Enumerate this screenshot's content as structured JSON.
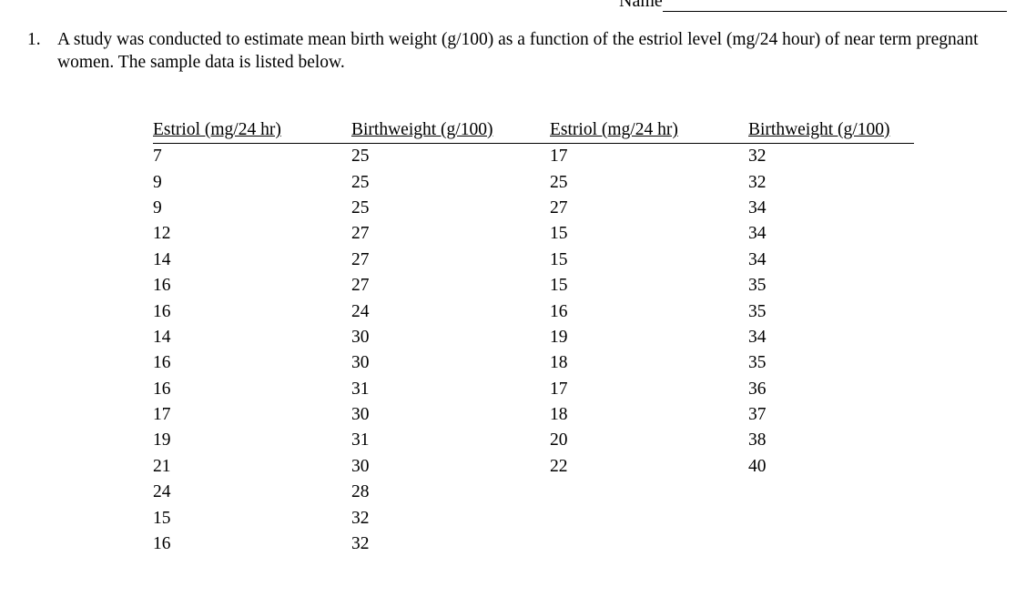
{
  "header": {
    "name_label": "Name"
  },
  "question": {
    "number": "1.",
    "text": "A study was conducted to estimate mean birth weight (g/100) as a function of the estriol level (mg/24 hour) of near term pregnant women. The sample data is listed below."
  },
  "table": {
    "headers": [
      "Estriol (mg/24 hr)",
      "Birthweight (g/100)",
      "Estriol (mg/24 hr)",
      "Birthweight (g/100)"
    ],
    "rows": [
      [
        "7",
        "25",
        "17",
        "32"
      ],
      [
        "9",
        "25",
        "25",
        "32"
      ],
      [
        "9",
        "25",
        "27",
        "34"
      ],
      [
        "12",
        "27",
        "15",
        "34"
      ],
      [
        "14",
        "27",
        "15",
        "34"
      ],
      [
        "16",
        "27",
        "15",
        "35"
      ],
      [
        "16",
        "24",
        "16",
        "35"
      ],
      [
        "14",
        "30",
        "19",
        "34"
      ],
      [
        "16",
        "30",
        "18",
        "35"
      ],
      [
        "16",
        "31",
        "17",
        "36"
      ],
      [
        "17",
        "30",
        "18",
        "37"
      ],
      [
        "19",
        "31",
        "20",
        "38"
      ],
      [
        "21",
        "30",
        "22",
        "40"
      ],
      [
        "24",
        "28",
        "",
        ""
      ],
      [
        "15",
        "32",
        "",
        ""
      ],
      [
        "16",
        "32",
        "",
        ""
      ]
    ]
  }
}
